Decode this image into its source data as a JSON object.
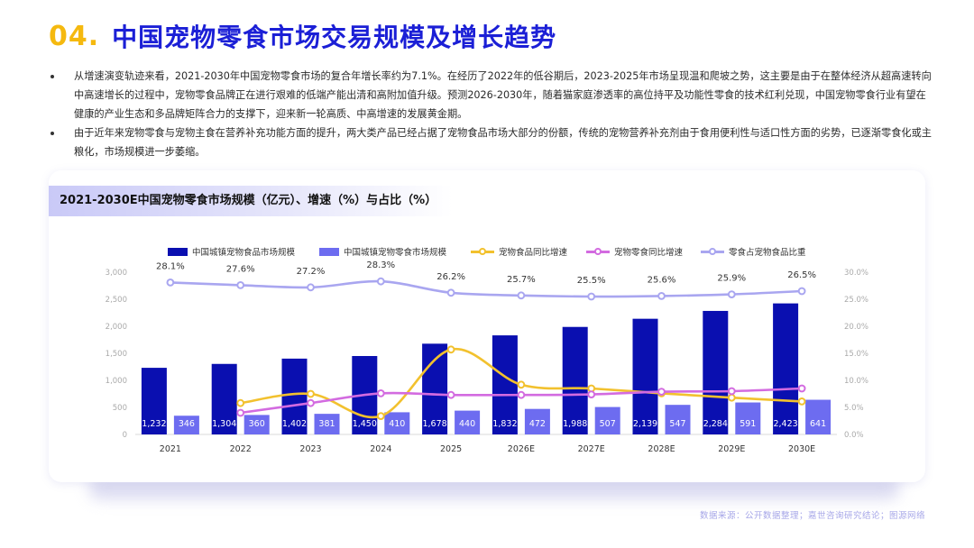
{
  "header": {
    "number": "04.",
    "title": "中国宠物零食市场交易规模及增长趋势"
  },
  "bullets": [
    "从增速演变轨迹来看，2021-2030年中国宠物零食市场的复合年增长率约为7.1%。在经历了2022年的低谷期后，2023-2025年市场呈现温和爬坡之势，这主要是由于在整体经济从超高速转向中高速增长的过程中，宠物零食品牌正在进行艰难的低端产能出清和高附加值升级。预测2026-2030年，随着猫家庭渗透率的高位持平及功能性零食的技术红利兑现，中国宠物零食行业有望在健康的产业生态和多品牌矩阵合力的支撑下，迎来新一轮高质、中高增速的发展黄金期。",
    "由于近年来宠物零食与宠物主食在营养补充功能方面的提升，两大类产品已经占据了宠物食品市场大部分的份额，传统的宠物营养补充剂由于食用便利性与适口性方面的劣势，已逐渐零食化或主粮化，市场规模进一步萎缩。"
  ],
  "chart_title": "2021-2030E中国宠物零食市场规模（亿元）、增速（%）与占比（%）",
  "source": "数据来源：公开数据整理；嘉世咨询研究结论；图源网络",
  "colors": {
    "food_bar": "#0a0fb0",
    "snack_bar": "#6d6cf0",
    "food_growth": "#f2c12e",
    "snack_growth": "#d36be0",
    "ratio": "#a9a6f0"
  },
  "chart_data": {
    "type": "bar",
    "categories": [
      "2021",
      "2022",
      "2023",
      "2024",
      "2025",
      "2026E",
      "2027E",
      "2028E",
      "2029E",
      "2030E"
    ],
    "ylim_left": [
      0,
      3000
    ],
    "yticks_left": [
      "0",
      "500",
      "1,000",
      "1,500",
      "2,000",
      "2,500",
      "3,000"
    ],
    "ylim_right": [
      0,
      30
    ],
    "yticks_right": [
      "0.0%",
      "5.0%",
      "10.0%",
      "15.0%",
      "20.0%",
      "25.0%",
      "30.0%"
    ],
    "series": [
      {
        "name": "中国城镇宠物食品市场规模",
        "kind": "bar",
        "axis": "left",
        "values": [
          1232,
          1304,
          1402,
          1450,
          1678,
          1832,
          1988,
          2139,
          2284,
          2423
        ],
        "labels": [
          "1,232",
          "1,304",
          "1,402",
          "1,450",
          "1,678",
          "1,832",
          "1,988",
          "2,139",
          "2,284",
          "2,423"
        ]
      },
      {
        "name": "中国城镇宠物零食市场规模",
        "kind": "bar",
        "axis": "left",
        "values": [
          346,
          360,
          381,
          410,
          440,
          472,
          507,
          547,
          591,
          641
        ],
        "labels": [
          "346",
          "360",
          "381",
          "410",
          "440",
          "472",
          "507",
          "547",
          "591",
          "641"
        ]
      },
      {
        "name": "宠物食品同比增速",
        "kind": "line",
        "axis": "right",
        "values": [
          null,
          5.8,
          7.5,
          3.4,
          15.7,
          9.2,
          8.5,
          7.6,
          6.8,
          6.1
        ]
      },
      {
        "name": "宠物零食同比增速",
        "kind": "line",
        "axis": "right",
        "values": [
          null,
          4.0,
          5.8,
          7.6,
          7.3,
          7.3,
          7.4,
          7.9,
          8.0,
          8.5
        ]
      },
      {
        "name": "零食占宠物食品比重",
        "kind": "line",
        "axis": "right",
        "values": [
          28.1,
          27.6,
          27.2,
          28.3,
          26.2,
          25.7,
          25.5,
          25.6,
          25.9,
          26.5
        ],
        "labels": [
          "28.1%",
          "27.6%",
          "27.2%",
          "28.3%",
          "26.2%",
          "25.7%",
          "25.5%",
          "25.6%",
          "25.9%",
          "26.5%"
        ]
      }
    ]
  }
}
